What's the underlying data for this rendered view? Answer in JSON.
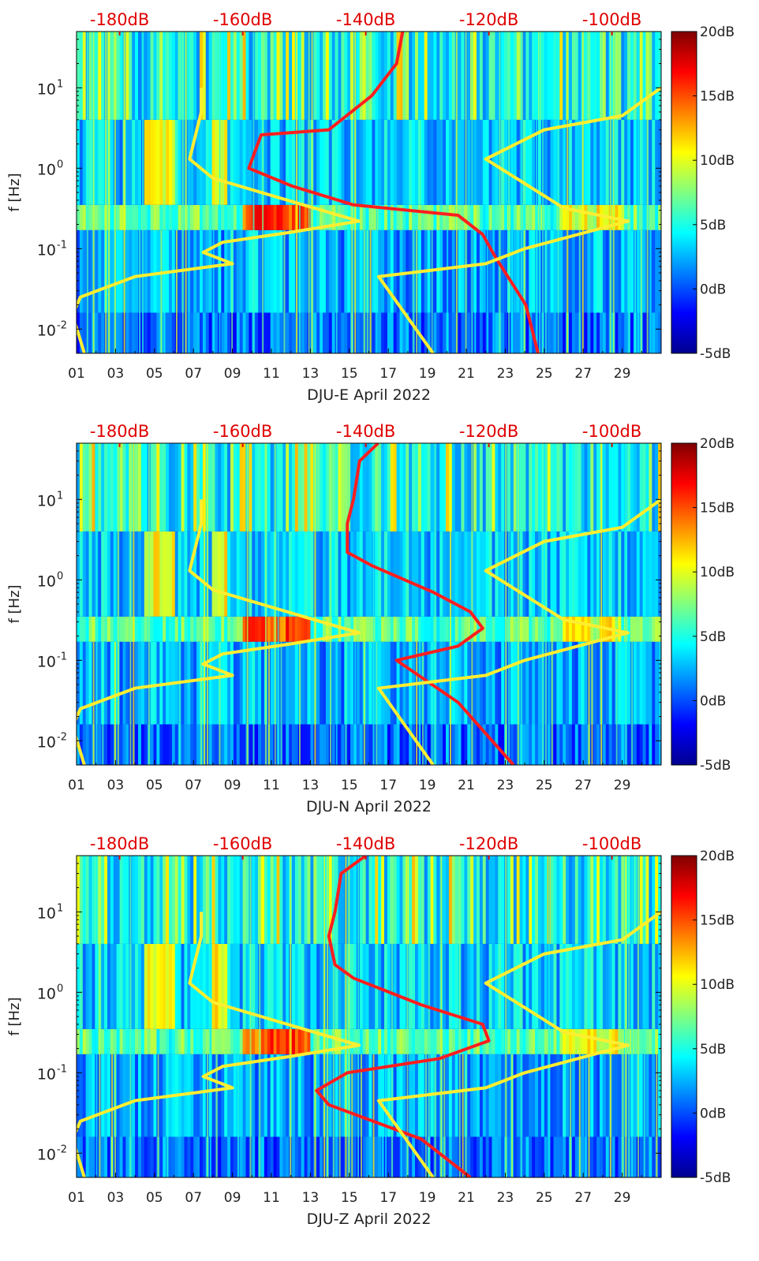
{
  "colormap": [
    "#00008f",
    "#0000ff",
    "#0080ff",
    "#00ffff",
    "#80ff80",
    "#ffff00",
    "#ff8000",
    "#ff0000",
    "#800000"
  ],
  "line_colors": {
    "red": "#ff1e1e",
    "yellow": "#ffee30"
  },
  "chart_data": [
    {
      "type": "heatmap",
      "title": "",
      "xlabel": "DJU-E April 2022",
      "ylabel": "f [Hz]",
      "x_ticks": [
        "01",
        "03",
        "05",
        "07",
        "09",
        "11",
        "13",
        "15",
        "17",
        "19",
        "21",
        "23",
        "25",
        "27",
        "29"
      ],
      "y_ticks": [
        {
          "value": 0.01,
          "base": "10",
          "exp": "-2"
        },
        {
          "value": 0.1,
          "base": "10",
          "exp": "-1"
        },
        {
          "value": 1,
          "base": "10",
          "exp": "0"
        },
        {
          "value": 10,
          "base": "10",
          "exp": "1"
        }
      ],
      "y_scale": "log",
      "ylim": [
        0.005,
        50
      ],
      "xlim": [
        1,
        31
      ],
      "top_axis_ticks": [
        "-180dB",
        "-160dB",
        "-140dB",
        "-120dB",
        "-100dB"
      ],
      "top_axis_range": [
        -187,
        -92
      ],
      "colorbar_ticks": [
        "20dB",
        "15dB",
        "10dB",
        "5dB",
        "0dB",
        "-5dB"
      ],
      "colorbar_range": [
        -5,
        20
      ],
      "red_curve": {
        "name": "",
        "x_dB": [
          -134,
          -135,
          -139,
          -146,
          -157,
          -159,
          -152,
          -142,
          -125,
          -121,
          -119,
          -114,
          -112
        ],
        "freq": [
          50,
          20,
          8,
          3,
          2.6,
          1,
          0.6,
          0.35,
          0.26,
          0.15,
          0.08,
          0.02,
          0.005
        ]
      },
      "yellow_curves": [
        {
          "name": "",
          "day": [
            1.4,
            0.8,
            1.2,
            4.0,
            9.0,
            7.5,
            8.5,
            12.0,
            15.5,
            14.0,
            8.0,
            6.8,
            7.4,
            7.4
          ],
          "freq": [
            0.005,
            0.015,
            0.025,
            0.045,
            0.065,
            0.09,
            0.12,
            0.16,
            0.22,
            0.28,
            0.75,
            1.3,
            5,
            10
          ]
        },
        {
          "name": "",
          "day": [
            19.3,
            16.5,
            22.0,
            24.0,
            29.3,
            26.0,
            22.0,
            25.0,
            29.0,
            31.0
          ],
          "freq": [
            0.005,
            0.045,
            0.065,
            0.1,
            0.22,
            0.32,
            1.3,
            3.0,
            4.5,
            10
          ]
        }
      ]
    },
    {
      "type": "heatmap",
      "title": "",
      "xlabel": "DJU-N April 2022",
      "ylabel": "f [Hz]",
      "x_ticks": [
        "01",
        "03",
        "05",
        "07",
        "09",
        "11",
        "13",
        "15",
        "17",
        "19",
        "21",
        "23",
        "25",
        "27",
        "29"
      ],
      "y_ticks": [
        {
          "value": 0.01,
          "base": "10",
          "exp": "-2"
        },
        {
          "value": 0.1,
          "base": "10",
          "exp": "-1"
        },
        {
          "value": 1,
          "base": "10",
          "exp": "0"
        },
        {
          "value": 10,
          "base": "10",
          "exp": "1"
        }
      ],
      "y_scale": "log",
      "ylim": [
        0.005,
        50
      ],
      "xlim": [
        1,
        31
      ],
      "top_axis_ticks": [
        "-180dB",
        "-160dB",
        "-140dB",
        "-120dB",
        "-100dB"
      ],
      "top_axis_range": [
        -187,
        -92
      ],
      "colorbar_ticks": [
        "20dB",
        "15dB",
        "10dB",
        "5dB",
        "0dB",
        "-5dB"
      ],
      "colorbar_range": [
        -5,
        20
      ],
      "red_curve": {
        "name": "",
        "x_dB": [
          -138,
          -141,
          -142,
          -143,
          -143,
          -139,
          -129,
          -123,
          -121,
          -125,
          -135,
          -125,
          -116
        ],
        "freq": [
          50,
          30,
          10,
          5,
          2.2,
          1.5,
          0.7,
          0.4,
          0.25,
          0.15,
          0.1,
          0.03,
          0.005
        ]
      },
      "yellow_curves": [
        {
          "name": "",
          "day": [
            1.4,
            0.8,
            1.2,
            4.0,
            9.0,
            7.5,
            8.5,
            12.0,
            15.5,
            14.0,
            8.0,
            6.8,
            7.4,
            7.4
          ],
          "freq": [
            0.005,
            0.015,
            0.025,
            0.045,
            0.065,
            0.09,
            0.12,
            0.16,
            0.22,
            0.28,
            0.75,
            1.3,
            5,
            10
          ]
        },
        {
          "name": "",
          "day": [
            19.3,
            16.5,
            22.0,
            24.0,
            29.3,
            26.0,
            22.0,
            25.0,
            29.0,
            31.0
          ],
          "freq": [
            0.005,
            0.045,
            0.065,
            0.1,
            0.22,
            0.32,
            1.3,
            3.0,
            4.5,
            10
          ]
        }
      ]
    },
    {
      "type": "heatmap",
      "title": "",
      "xlabel": "DJU-Z April 2022",
      "ylabel": "f [Hz]",
      "x_ticks": [
        "01",
        "03",
        "05",
        "07",
        "09",
        "11",
        "13",
        "15",
        "17",
        "19",
        "21",
        "23",
        "25",
        "27",
        "29"
      ],
      "y_ticks": [
        {
          "value": 0.01,
          "base": "10",
          "exp": "-2"
        },
        {
          "value": 0.1,
          "base": "10",
          "exp": "-1"
        },
        {
          "value": 1,
          "base": "10",
          "exp": "0"
        },
        {
          "value": 10,
          "base": "10",
          "exp": "1"
        }
      ],
      "y_scale": "log",
      "ylim": [
        0.005,
        50
      ],
      "xlim": [
        1,
        31
      ],
      "top_axis_ticks": [
        "-180dB",
        "-160dB",
        "-140dB",
        "-120dB",
        "-100dB"
      ],
      "top_axis_range": [
        -187,
        -92
      ],
      "colorbar_ticks": [
        "20dB",
        "15dB",
        "10dB",
        "5dB",
        "0dB",
        "-5dB"
      ],
      "colorbar_range": [
        -5,
        20
      ],
      "red_curve": {
        "name": "",
        "x_dB": [
          -140,
          -144,
          -145,
          -146,
          -145,
          -142,
          -131,
          -121,
          -120,
          -128,
          -143,
          -148,
          -146,
          -131,
          -123
        ],
        "freq": [
          50,
          30,
          10,
          5,
          2.2,
          1.5,
          0.7,
          0.4,
          0.25,
          0.15,
          0.1,
          0.06,
          0.04,
          0.015,
          0.005
        ]
      },
      "yellow_curves": [
        {
          "name": "",
          "day": [
            1.4,
            0.8,
            1.2,
            4.0,
            9.0,
            7.5,
            8.5,
            12.0,
            15.5,
            14.0,
            8.0,
            6.8,
            7.4,
            7.4
          ],
          "freq": [
            0.005,
            0.015,
            0.025,
            0.045,
            0.065,
            0.09,
            0.12,
            0.16,
            0.22,
            0.28,
            0.75,
            1.3,
            5,
            10
          ]
        },
        {
          "name": "",
          "day": [
            19.3,
            16.5,
            22.0,
            24.0,
            29.3,
            26.0,
            22.0,
            25.0,
            29.0,
            31.0
          ],
          "freq": [
            0.005,
            0.045,
            0.065,
            0.1,
            0.22,
            0.32,
            1.3,
            3.0,
            4.5,
            10
          ]
        }
      ]
    }
  ]
}
